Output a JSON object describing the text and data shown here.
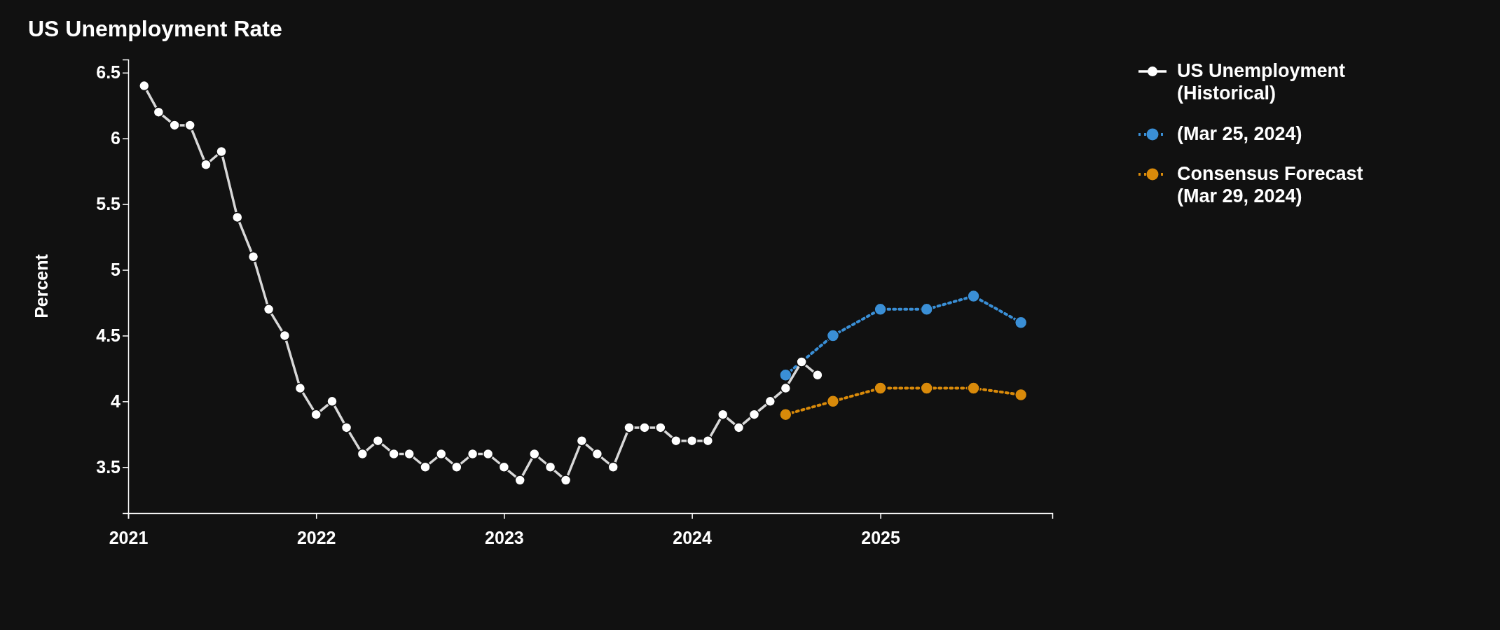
{
  "chart_data": {
    "type": "line",
    "title": "US Unemployment Rate",
    "ylabel": "Percent",
    "xlim": [
      "2021-01-01",
      "2025-12-01"
    ],
    "xticks": [
      {
        "value": "2021-01-01",
        "label": "2021"
      },
      {
        "value": "2022-01-01",
        "label": "2022"
      },
      {
        "value": "2023-01-01",
        "label": "2023"
      },
      {
        "value": "2024-01-01",
        "label": "2024"
      },
      {
        "value": "2025-01-01",
        "label": "2025"
      }
    ],
    "ylim": [
      3.15,
      6.6
    ],
    "yticks": [
      3.5,
      4,
      4.5,
      5,
      5.5,
      6,
      6.5
    ],
    "grid": false,
    "legend": "top right",
    "marker": "circle",
    "series": [
      {
        "name": "US Unemployment (Historical)",
        "color": "#ffffff",
        "line_style": "solid",
        "x": [
          "2021-02",
          "2021-03",
          "2021-04",
          "2021-05",
          "2021-06",
          "2021-07",
          "2021-08",
          "2021-09",
          "2021-10",
          "2021-11",
          "2021-12",
          "2022-01",
          "2022-02",
          "2022-03",
          "2022-04",
          "2022-05",
          "2022-06",
          "2022-07",
          "2022-08",
          "2022-09",
          "2022-10",
          "2022-11",
          "2022-12",
          "2023-01",
          "2023-02",
          "2023-03",
          "2023-04",
          "2023-05",
          "2023-06",
          "2023-07",
          "2023-08",
          "2023-09",
          "2023-10",
          "2023-11",
          "2023-12",
          "2024-01",
          "2024-02",
          "2024-03",
          "2024-04",
          "2024-05",
          "2024-06",
          "2024-07",
          "2024-08",
          "2024-09"
        ],
        "values": [
          6.4,
          6.2,
          6.1,
          6.1,
          5.8,
          5.9,
          5.4,
          5.1,
          4.7,
          4.5,
          4.1,
          3.9,
          4.0,
          3.8,
          3.6,
          3.7,
          3.6,
          3.6,
          3.5,
          3.6,
          3.5,
          3.6,
          3.6,
          3.5,
          3.4,
          3.6,
          3.5,
          3.4,
          3.7,
          3.6,
          3.5,
          3.8,
          3.8,
          3.8,
          3.7,
          3.7,
          3.7,
          3.9,
          3.8,
          3.9,
          4.0,
          4.1,
          4.3,
          4.2
        ]
      },
      {
        "name": "(Mar 25, 2024)",
        "color": "#3a8fd6",
        "line_style": "dotted",
        "x": [
          "2024-07",
          "2024-10",
          "2025-01",
          "2025-04",
          "2025-07",
          "2025-10"
        ],
        "values": [
          4.2,
          4.5,
          4.7,
          4.7,
          4.8,
          4.6
        ]
      },
      {
        "name": "Consensus Forecast (Mar 29, 2024)",
        "color": "#d98a0a",
        "line_style": "dotted",
        "x": [
          "2024-07",
          "2024-10",
          "2025-01",
          "2025-04",
          "2025-07",
          "2025-10"
        ],
        "values": [
          3.9,
          4.0,
          4.1,
          4.1,
          4.1,
          4.05
        ]
      }
    ]
  }
}
